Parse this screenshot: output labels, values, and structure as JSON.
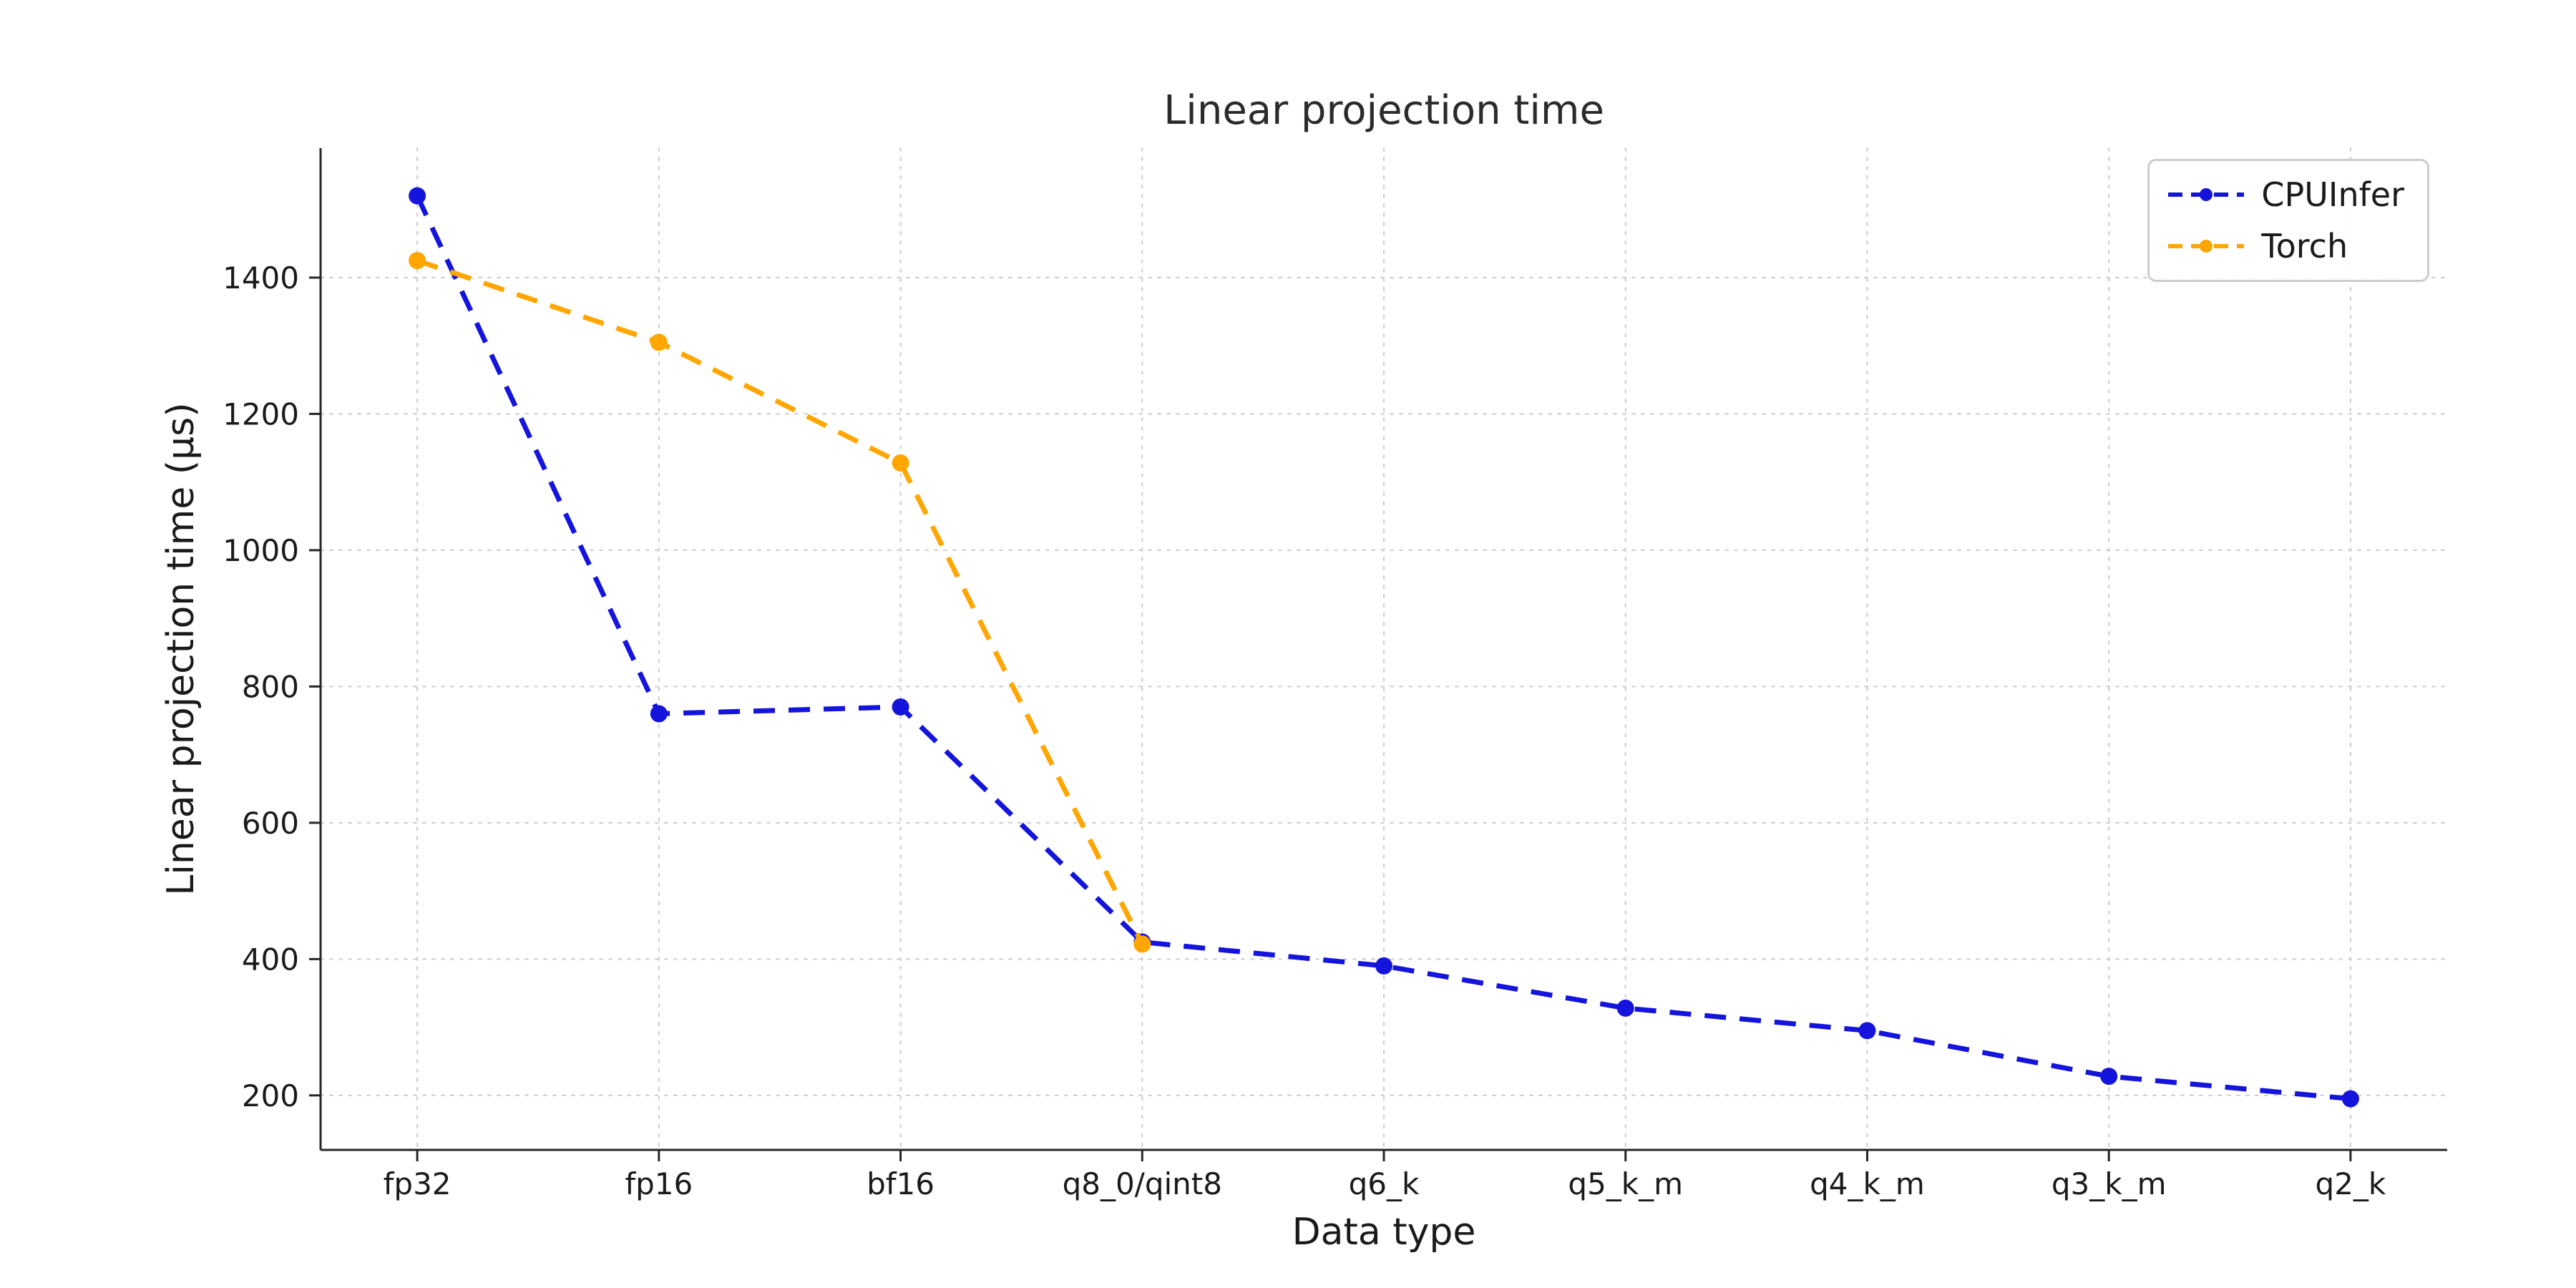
{
  "chart_data": {
    "type": "line",
    "title": "Linear projection time",
    "xlabel": "Data type",
    "ylabel": "Linear projection time (μs)",
    "categories": [
      "fp32",
      "fp16",
      "bf16",
      "q8_0/qint8",
      "q6_k",
      "q5_k_m",
      "q4_k_m",
      "q3_k_m",
      "q2_k"
    ],
    "series": [
      {
        "name": "CPUInfer",
        "color": "#1414dd",
        "values": [
          1520,
          760,
          770,
          425,
          390,
          328,
          295,
          228,
          195
        ]
      },
      {
        "name": "Torch",
        "color": "#ffa600",
        "values": [
          1425,
          1305,
          1128,
          422,
          null,
          null,
          null,
          null,
          null
        ]
      }
    ],
    "yticks": [
      200,
      400,
      600,
      800,
      1000,
      1200,
      1400
    ],
    "ylim": [
      120,
      1590
    ],
    "grid": true,
    "grid_color": "#cccccc",
    "axis_color": "#262626",
    "line_style": "dashed",
    "marker": "circle",
    "legend_position": "upper right"
  }
}
